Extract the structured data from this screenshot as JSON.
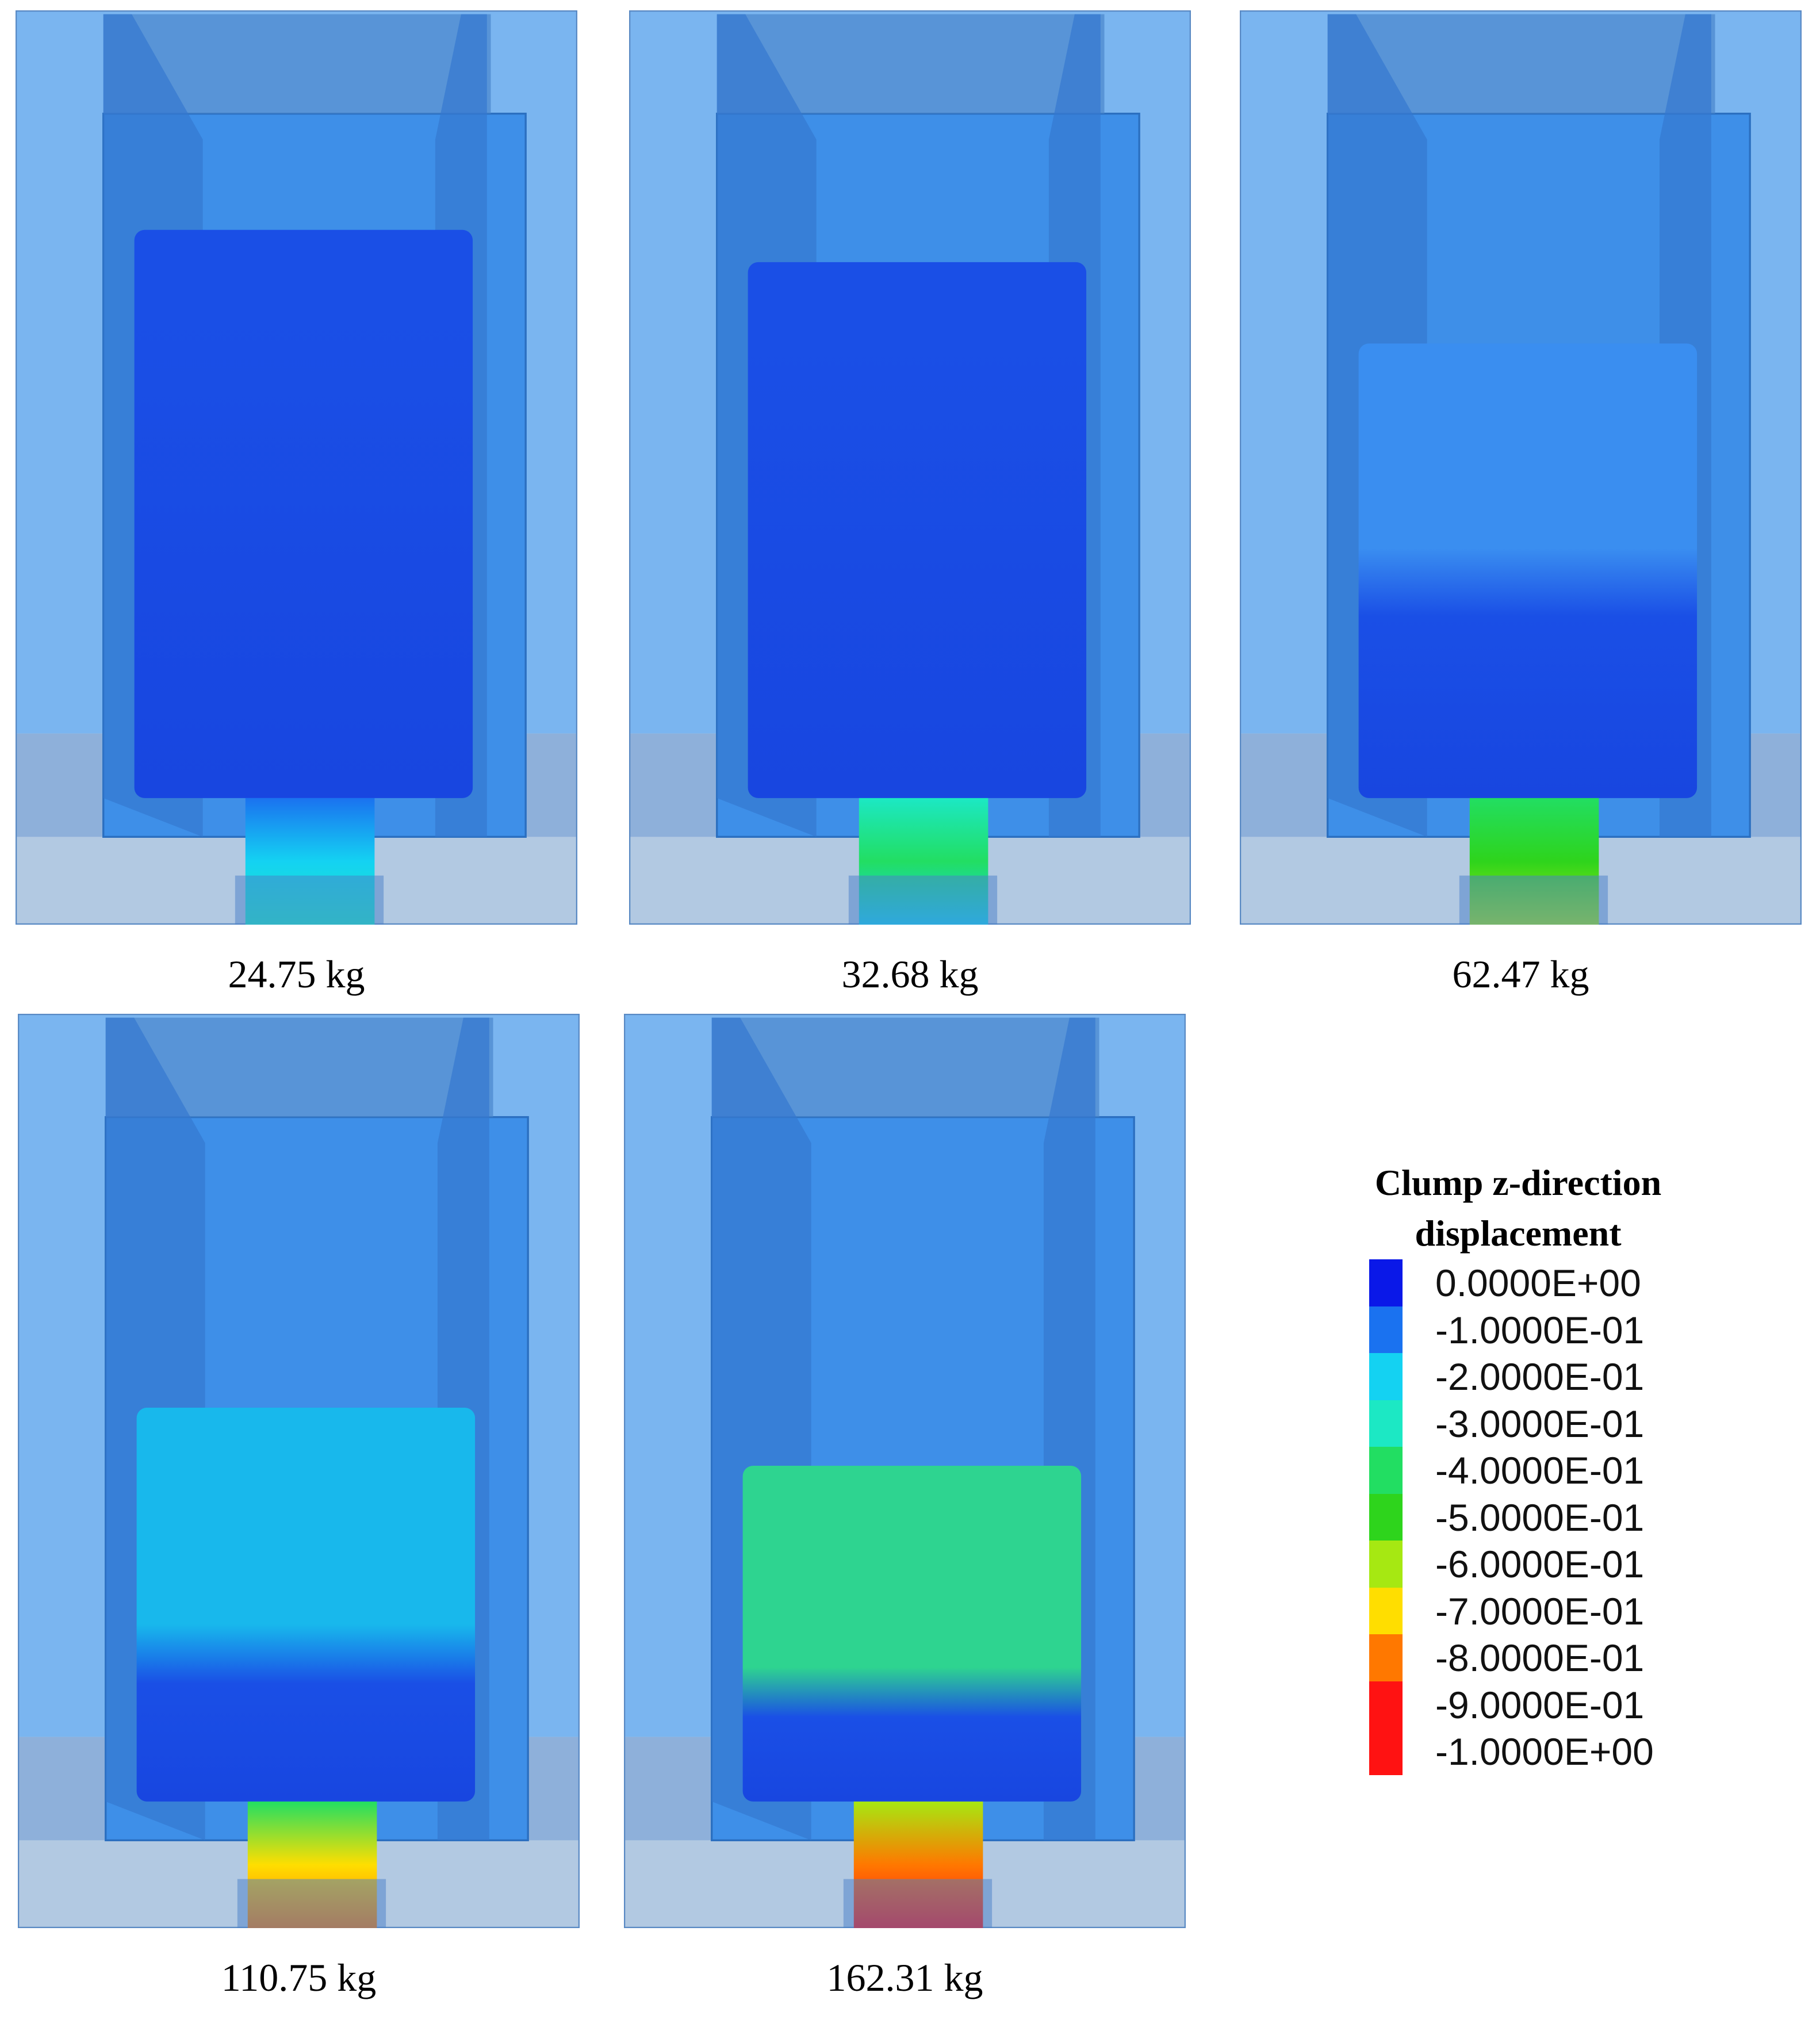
{
  "panels": [
    {
      "caption": "24.75 kg"
    },
    {
      "caption": "32.68 kg"
    },
    {
      "caption": "62.47 kg"
    },
    {
      "caption": "110.75 kg"
    },
    {
      "caption": "162.31 kg"
    }
  ],
  "legend": {
    "title": [
      "Clump z-direction",
      "displacement"
    ],
    "items": [
      {
        "label": "0.0000E+00",
        "color": "#0a18e8"
      },
      {
        "label": "-1.0000E-01",
        "color": "#1a72f0"
      },
      {
        "label": "-2.0000E-01",
        "color": "#14d2f2"
      },
      {
        "label": "-3.0000E-01",
        "color": "#1ce8c4"
      },
      {
        "label": "-4.0000E-01",
        "color": "#22de62"
      },
      {
        "label": "-5.0000E-01",
        "color": "#2ed41c"
      },
      {
        "label": "-6.0000E-01",
        "color": "#a6e812"
      },
      {
        "label": "-7.0000E-01",
        "color": "#ffde00"
      },
      {
        "label": "-8.0000E-01",
        "color": "#ff7800"
      },
      {
        "label": "-9.0000E-01",
        "color": "#ff1212"
      },
      {
        "label": "-1.0000E+00",
        "color": "#ff1212"
      }
    ]
  }
}
